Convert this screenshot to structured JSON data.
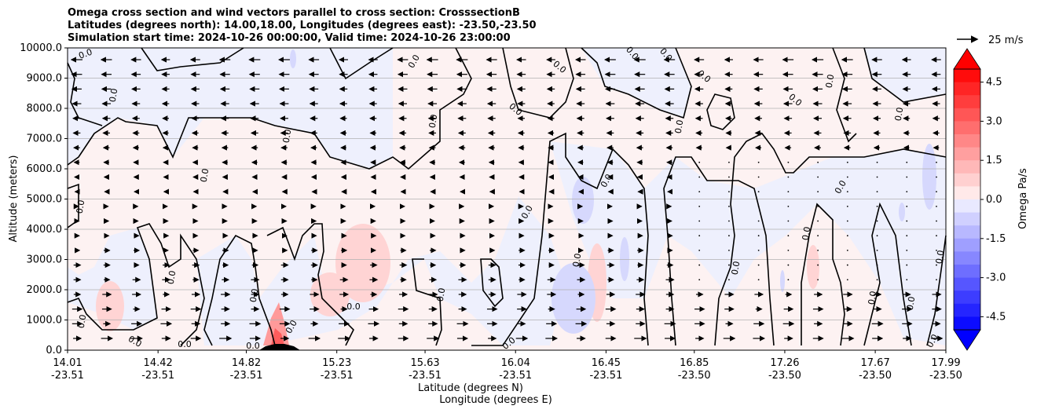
{
  "chart_data": {
    "type": "contour",
    "title_lines": [
      "Omega cross section and wind vectors parallel to cross section: CrosssectionB",
      "Latitudes (degrees north): 14.00,18.00, Longitudes (degrees east): -23.50,-23.50",
      "Simulation start time: 2024-10-26 00:00:00, Valid time: 2024-10-26 23:00:00"
    ],
    "ylabel": "Altitude (meters)",
    "xlabel_lat": "Latitude (degrees N)",
    "xlabel_lon": "Longitude (degrees E)",
    "ylim": [
      0,
      10000
    ],
    "yticks": [
      "0.0",
      "1000.0",
      "2000.0",
      "3000.0",
      "4000.0",
      "5000.0",
      "6000.0",
      "7000.0",
      "8000.0",
      "9000.0",
      "10000.0"
    ],
    "xticks": [
      {
        "lat": "14.01",
        "lon": "-23.51"
      },
      {
        "lat": "14.42",
        "lon": "-23.51"
      },
      {
        "lat": "14.82",
        "lon": "-23.51"
      },
      {
        "lat": "15.23",
        "lon": "-23.51"
      },
      {
        "lat": "15.63",
        "lon": "-23.51"
      },
      {
        "lat": "16.04",
        "lon": "-23.51"
      },
      {
        "lat": "16.45",
        "lon": "-23.51"
      },
      {
        "lat": "16.85",
        "lon": "-23.50"
      },
      {
        "lat": "17.26",
        "lon": "-23.50"
      },
      {
        "lat": "17.67",
        "lon": "-23.50"
      },
      {
        "lat": "17.99",
        "lon": "-23.50"
      }
    ],
    "colorbar": {
      "label": "Omega Pa/s",
      "ticks": [
        "-4.5",
        "-3.0",
        "-1.5",
        "0.0",
        "1.5",
        "3.0",
        "4.5"
      ],
      "range": [
        -5,
        5
      ],
      "levels": 20
    },
    "quiver_key": "25 m/s",
    "contour_label": "0.0",
    "grid": "horizontal"
  }
}
